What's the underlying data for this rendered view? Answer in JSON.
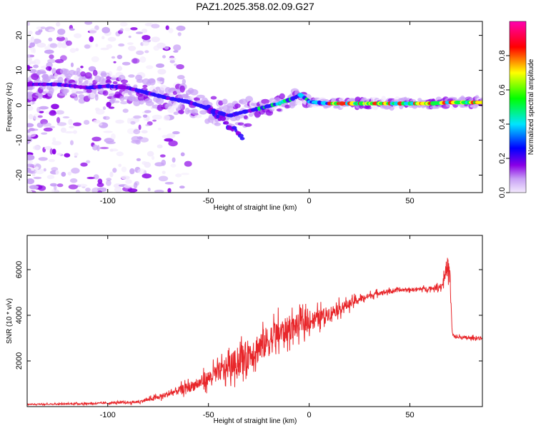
{
  "title": "PAZ1.2025.358.02.09.G27",
  "chart_data": [
    {
      "type": "heatmap",
      "title": "PAZ1.2025.358.02.09.G27",
      "xlabel": "Height of straight line (km)",
      "ylabel": "Frequency (Hz)",
      "xlim": [
        -140,
        86
      ],
      "ylim": [
        -25,
        24
      ],
      "xticks": [
        -100,
        -50,
        0,
        50
      ],
      "yticks": [
        -20,
        -10,
        0,
        10,
        20
      ],
      "colorbar": {
        "label": "Normalized spectral amplitude",
        "range": [
          0.0,
          1.0
        ],
        "ticks": [
          "0.0",
          "0.2",
          "0.4",
          "0.6",
          "0.8"
        ],
        "colors": [
          "#f3eafd",
          "#8a00e6",
          "#0000ff",
          "#00e5ff",
          "#00ff00",
          "#ffff00",
          "#ff0000",
          "#ff00b0"
        ]
      },
      "ridge": {
        "heights_km": [
          -140,
          -125,
          -110,
          -100,
          -90,
          -80,
          -70,
          -60,
          -50,
          -40,
          -33,
          -25,
          -15,
          -8,
          -4,
          0,
          10,
          20,
          40,
          60,
          70,
          86
        ],
        "frequency_hz": [
          6,
          6,
          5,
          5.5,
          5,
          3.5,
          2,
          1,
          -1,
          -3,
          -2,
          -1,
          0.5,
          2,
          3,
          1,
          0.5,
          0.5,
          0.5,
          0.5,
          0.8,
          0.8
        ]
      },
      "branch": {
        "heights_km": [
          -50,
          -45,
          -40,
          -36,
          -33
        ],
        "frequency_hz": [
          -1,
          -3,
          -6,
          -7.5,
          -9
        ]
      }
    },
    {
      "type": "line",
      "xlabel": "Height of straight line (km)",
      "ylabel": "SNR (10 * v/v)",
      "xlim": [
        -140,
        86
      ],
      "ylim": [
        0,
        7500
      ],
      "xticks": [
        -100,
        -50,
        0,
        50
      ],
      "yticks": [
        2000,
        4000,
        6000
      ],
      "series": [
        {
          "name": "SNR",
          "color": "#e8262a",
          "x": [
            -140,
            -120,
            -100,
            -85,
            -75,
            -65,
            -55,
            -45,
            -35,
            -25,
            -15,
            -5,
            5,
            15,
            25,
            35,
            45,
            55,
            63,
            66,
            68,
            69,
            70,
            71,
            72,
            80,
            86
          ],
          "y": [
            100,
            120,
            150,
            200,
            400,
            700,
            1000,
            1500,
            2000,
            2600,
            3200,
            3600,
            3900,
            4300,
            4700,
            5000,
            5100,
            5150,
            5200,
            5300,
            6000,
            6200,
            5500,
            3200,
            3050,
            3000,
            3000
          ],
          "noise": [
            50,
            60,
            80,
            100,
            200,
            350,
            500,
            800,
            1200,
            1400,
            1200,
            900,
            700,
            500,
            300,
            200,
            150,
            150,
            200,
            300,
            700,
            900,
            700,
            200,
            150,
            150,
            150
          ]
        }
      ]
    }
  ]
}
